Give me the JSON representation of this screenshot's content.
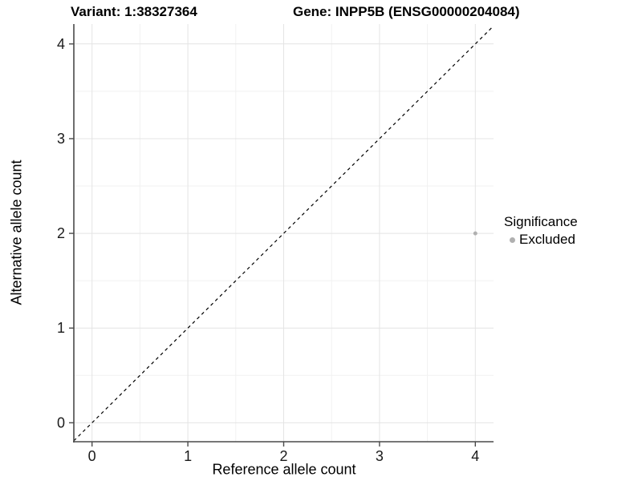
{
  "figure": {
    "title_variant": "Variant: 1:38327364",
    "title_gene": "Gene: INPP5B (ENSG00000204084)",
    "x_axis_label": "Reference allele count",
    "y_axis_label": "Alternative allele count",
    "legend": {
      "title": "Significance",
      "entries": [
        {
          "label": "Excluded",
          "color": "#b0b0b0"
        }
      ]
    }
  },
  "chart_data": {
    "type": "scatter",
    "title": "Variant: 1:38327364 — Gene: INPP5B (ENSG00000204084)",
    "xlabel": "Reference allele count",
    "ylabel": "Alternative allele count",
    "xlim": [
      -0.19,
      4.19
    ],
    "ylim": [
      -0.2,
      4.21
    ],
    "xticks": [
      0,
      1,
      2,
      3,
      4
    ],
    "yticks": [
      0,
      1,
      2,
      3,
      4
    ],
    "minor_gridlines_x": [
      0.5,
      1.5,
      2.5,
      3.5
    ],
    "minor_gridlines_y": [
      0.5,
      1.5,
      2.5,
      3.5
    ],
    "grid": "major and minor, light gray on white",
    "legend_position": "right",
    "series": [
      {
        "name": "Excluded",
        "color": "#b0b0b0",
        "marker": "circle",
        "size": 2.5,
        "points": [
          {
            "x": 4,
            "y": 2
          }
        ]
      }
    ],
    "reference_line": {
      "type": "identity y=x",
      "style": "dashed",
      "color": "#000000"
    }
  },
  "colors": {
    "background": "#ffffff",
    "grid_major": "#e4e4e4",
    "grid_minor": "#f1f1f1",
    "axis_line": "#4a4a4a",
    "tick_mark": "#4a4a4a",
    "text": "#000000",
    "point": "#b0b0b0"
  }
}
